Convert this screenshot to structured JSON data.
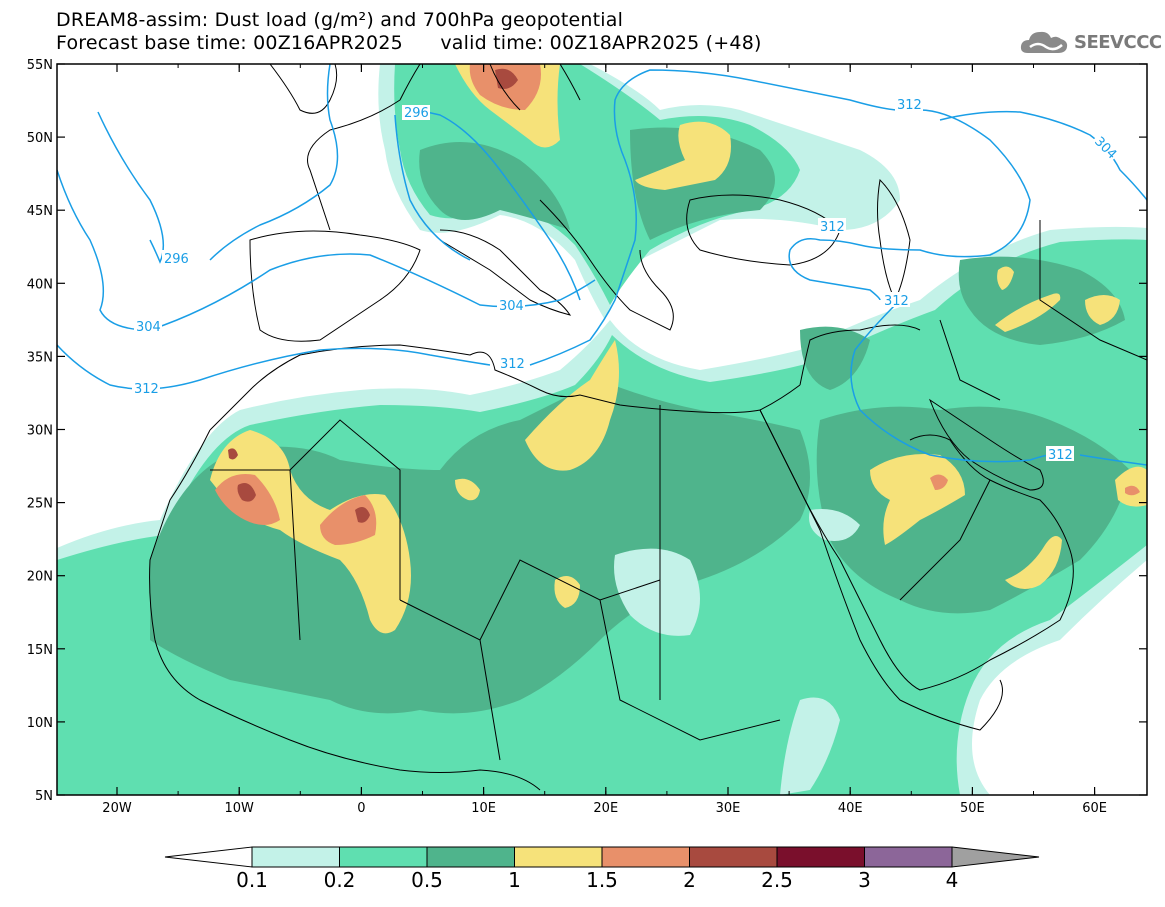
{
  "header": {
    "title_line1": "DREAM8-assim: Dust load (g/m²) and 700hPa geopotential",
    "title_line2": "Forecast base time: 00Z16APR2025      valid time: 00Z18APR2025 (+48)",
    "logo_text": "SEEVCCC"
  },
  "map": {
    "lat_labels": [
      "55N",
      "50N",
      "45N",
      "40N",
      "35N",
      "30N",
      "25N",
      "20N",
      "15N",
      "10N",
      "5N"
    ],
    "lon_labels": [
      "20W",
      "10W",
      "0",
      "10E",
      "20E",
      "30E",
      "40E",
      "50E",
      "60E"
    ],
    "contour_labels": [
      "296",
      "296",
      "304",
      "304",
      "304",
      "312",
      "312",
      "312",
      "312",
      "312",
      "312"
    ]
  },
  "colorbar": {
    "labels": [
      "0.1",
      "0.2",
      "0.5",
      "1",
      "1.5",
      "2",
      "2.5",
      "3",
      "4"
    ],
    "colors": [
      "#ffffff",
      "#c3f2e8",
      "#5fdfb0",
      "#4fb48c",
      "#f6e27a",
      "#e8906a",
      "#a84a3f",
      "#7a0f2c",
      "#8c6699",
      "#a0a0a0"
    ]
  }
}
